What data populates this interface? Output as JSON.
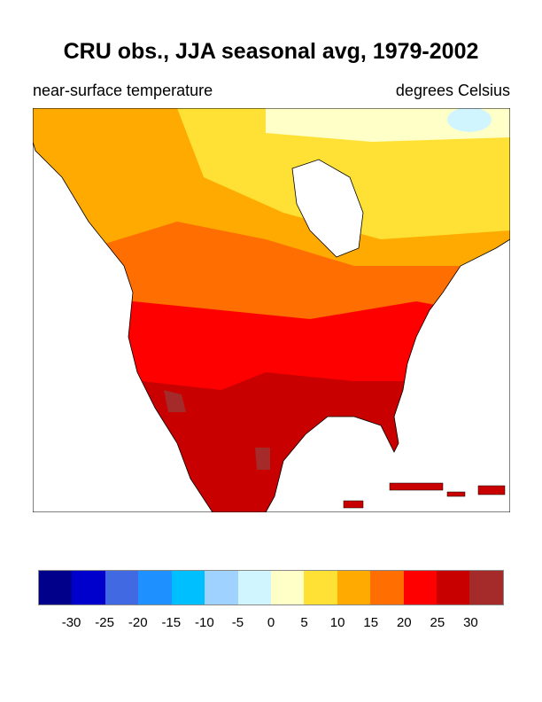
{
  "title": "CRU obs., JJA seasonal avg, 1979-2002",
  "left_subtitle": "near-surface temperature",
  "right_subtitle": "degrees Celsius",
  "colorbar": {
    "colors": [
      "#00008B",
      "#0000CD",
      "#4169E1",
      "#1E90FF",
      "#00BFFF",
      "#A0D2FF",
      "#D1F5FF",
      "#FFFFC8",
      "#FFE135",
      "#FFAA00",
      "#FF6E00",
      "#FF0000",
      "#C80000",
      "#A52A2A"
    ],
    "labels": [
      "-30",
      "-25",
      "-20",
      "-15",
      "-10",
      "-5",
      "0",
      "5",
      "10",
      "15",
      "20",
      "25",
      "30"
    ]
  }
}
